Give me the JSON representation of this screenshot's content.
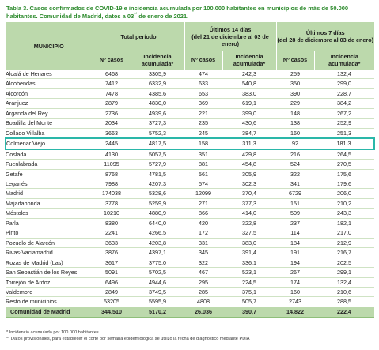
{
  "caption": {
    "text": "Tabla 3. Casos confirmados de COVID-19 e incidencia acumulada por 100.000 habitantes en municipios de más de 50.000 habitantes. Comunidad de Madrid, datos a 03",
    "superscript": "**",
    "suffix": " de enero de 2021."
  },
  "headers": {
    "municipio": "MUNICIPIO",
    "total_periodo": "Total período",
    "ultimos14_line1": "Últimos 14 días",
    "ultimos14_line2": "(del 21 de diciembre al 03 de enero)",
    "ultimos7_line1": "Últimos 7 días",
    "ultimos7_line2": "(del 28 de diciembre al 03 de enero)",
    "n_casos": "Nº casos",
    "incidencia_line1": "Incidencia",
    "incidencia_line2": "acumulada*"
  },
  "rows": [
    [
      "Alcalá de Henares",
      "6468",
      "3305,9",
      "474",
      "242,3",
      "259",
      "132,4"
    ],
    [
      "Alcobendas",
      "7412",
      "6332,9",
      "633",
      "540,8",
      "350",
      "299,0"
    ],
    [
      "Alcorcón",
      "7478",
      "4385,6",
      "653",
      "383,0",
      "390",
      "228,7"
    ],
    [
      "Aranjuez",
      "2879",
      "4830,0",
      "369",
      "619,1",
      "229",
      "384,2"
    ],
    [
      "Arganda del Rey",
      "2736",
      "4939,6",
      "221",
      "399,0",
      "148",
      "267,2"
    ],
    [
      "Boadilla del Monte",
      "2034",
      "3727,3",
      "235",
      "430,6",
      "138",
      "252,9"
    ],
    [
      "Collado Villalba",
      "3663",
      "5752,3",
      "245",
      "384,7",
      "160",
      "251,3"
    ],
    [
      "Colmenar Viejo",
      "2445",
      "4817,5",
      "158",
      "311,3",
      "92",
      "181,3"
    ],
    [
      "Coslada",
      "4130",
      "5057,5",
      "351",
      "429,8",
      "216",
      "264,5"
    ],
    [
      "Fuenlabrada",
      "11095",
      "5727,9",
      "881",
      "454,8",
      "524",
      "270,5"
    ],
    [
      "Getafe",
      "8768",
      "4781,5",
      "561",
      "305,9",
      "322",
      "175,6"
    ],
    [
      "Leganés",
      "7988",
      "4207,3",
      "574",
      "302,3",
      "341",
      "179,6"
    ],
    [
      "Madrid",
      "174038",
      "5328,6",
      "12099",
      "370,4",
      "6729",
      "206,0"
    ],
    [
      "Majadahonda",
      "3778",
      "5259,9",
      "271",
      "377,3",
      "151",
      "210,2"
    ],
    [
      "Móstoles",
      "10210",
      "4880,9",
      "866",
      "414,0",
      "509",
      "243,3"
    ],
    [
      "Parla",
      "8380",
      "6440,0",
      "420",
      "322,8",
      "237",
      "182,1"
    ],
    [
      "Pinto",
      "2241",
      "4266,5",
      "172",
      "327,5",
      "114",
      "217,0"
    ],
    [
      "Pozuelo de Alarcón",
      "3633",
      "4203,8",
      "331",
      "383,0",
      "184",
      "212,9"
    ],
    [
      "Rivas-Vaciamadrid",
      "3876",
      "4397,1",
      "345",
      "391,4",
      "191",
      "216,7"
    ],
    [
      "Rozas de Madrid (Las)",
      "3617",
      "3775,0",
      "322",
      "336,1",
      "194",
      "202,5"
    ],
    [
      "San Sebastián de los Reyes",
      "5091",
      "5702,5",
      "467",
      "523,1",
      "267",
      "299,1"
    ],
    [
      "Torrejón de Ardoz",
      "6496",
      "4944,6",
      "295",
      "224,5",
      "174",
      "132,4"
    ],
    [
      "Valdemoro",
      "2849",
      "3749,5",
      "285",
      "375,1",
      "160",
      "210,6"
    ],
    [
      "Resto de municipios",
      "53205",
      "5595,9",
      "4808",
      "505,7",
      "2743",
      "288,5"
    ]
  ],
  "total": [
    "Comunidad de Madrid",
    "344.510",
    "5170,2",
    "26.036",
    "390,7",
    "14.822",
    "222,4"
  ],
  "footnotes": [
    "* Incidencia acumulada por 100.000 habitantes",
    "** Datos provisionales, para establecer el corte por semana epidemiológica se utilizó la fecha de diagnóstico mediante PDIA"
  ],
  "colors": {
    "header_bg": "#bcd9ac",
    "caption_text": "#2e8b2e",
    "highlight_border": "#2ab7a9"
  }
}
